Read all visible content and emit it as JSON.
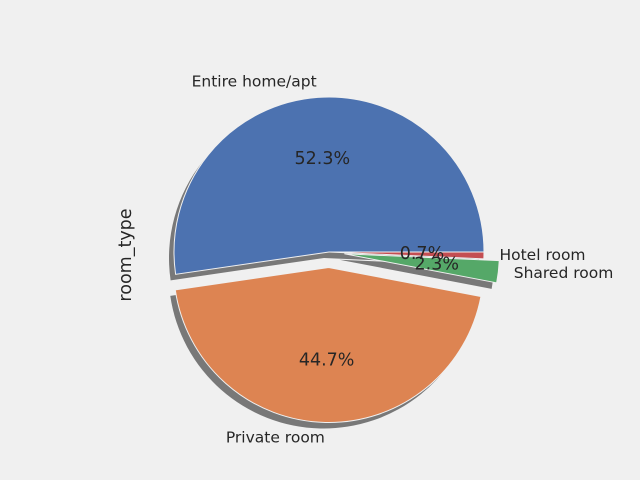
{
  "chart_data": {
    "type": "pie",
    "title": "",
    "ylabel": "room_type",
    "startangle": 0,
    "direction": "counterclockwise",
    "shadow": true,
    "explode": [
      0,
      0.1,
      0.1,
      0
    ],
    "slices": [
      {
        "label": "Entire home/apt",
        "value": 52.3,
        "pct_label": "52.3%",
        "color": "#4c72b0"
      },
      {
        "label": "Private room",
        "value": 44.7,
        "pct_label": "44.7%",
        "color": "#dd8452"
      },
      {
        "label": "Shared room",
        "value": 2.3,
        "pct_label": "2.3%",
        "color": "#55a868"
      },
      {
        "label": "Hotel room",
        "value": 0.7,
        "pct_label": "0.7%",
        "color": "#c44e52"
      }
    ]
  }
}
